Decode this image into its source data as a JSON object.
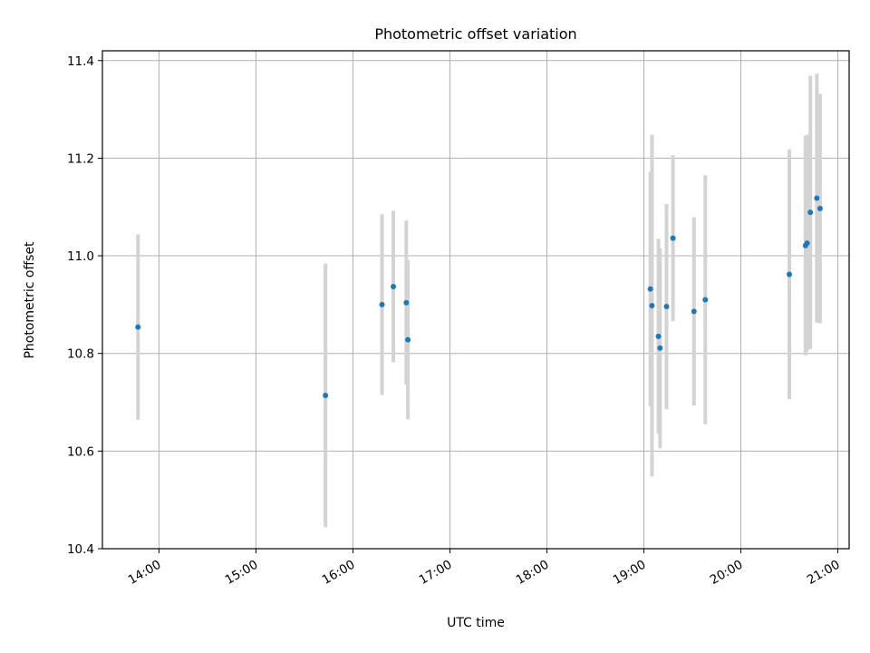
{
  "chart_data": {
    "type": "scatter",
    "title": "Photometric offset variation",
    "xlabel": "UTC time",
    "ylabel": "Photometric offset",
    "xlim": [
      "13:25",
      "21:07"
    ],
    "ylim": [
      10.4,
      11.42
    ],
    "xticks": [
      "14:00",
      "15:00",
      "16:00",
      "17:00",
      "18:00",
      "19:00",
      "20:00",
      "21:00"
    ],
    "yticks": [
      "10.4",
      "10.6",
      "10.8",
      "11.0",
      "11.2",
      "11.4"
    ],
    "grid": true,
    "marker_color": "#1f77b4",
    "errorbar_color": "#d3d3d3",
    "points": [
      {
        "t": "13:47",
        "y": 10.854,
        "err": 0.19
      },
      {
        "t": "15:43",
        "y": 10.714,
        "err": 0.27
      },
      {
        "t": "16:18",
        "y": 10.9,
        "err": 0.185
      },
      {
        "t": "16:25",
        "y": 10.937,
        "err": 0.155
      },
      {
        "t": "16:33",
        "y": 10.904,
        "err": 0.168
      },
      {
        "t": "16:34",
        "y": 10.828,
        "err": 0.163
      },
      {
        "t": "19:04",
        "y": 10.932,
        "err": 0.24
      },
      {
        "t": "19:05",
        "y": 10.898,
        "err": 0.35
      },
      {
        "t": "19:09",
        "y": 10.835,
        "err": 0.2
      },
      {
        "t": "19:10",
        "y": 10.811,
        "err": 0.205
      },
      {
        "t": "19:14",
        "y": 10.896,
        "err": 0.21
      },
      {
        "t": "19:18",
        "y": 11.036,
        "err": 0.17
      },
      {
        "t": "19:31",
        "y": 10.886,
        "err": 0.193
      },
      {
        "t": "19:38",
        "y": 10.91,
        "err": 0.255
      },
      {
        "t": "20:30",
        "y": 10.962,
        "err": 0.256
      },
      {
        "t": "20:40",
        "y": 11.021,
        "err": 0.225
      },
      {
        "t": "20:41",
        "y": 11.026,
        "err": 0.222
      },
      {
        "t": "20:43",
        "y": 11.089,
        "err": 0.28
      },
      {
        "t": "20:47",
        "y": 11.118,
        "err": 0.255
      },
      {
        "t": "20:49",
        "y": 11.097,
        "err": 0.235
      }
    ]
  }
}
